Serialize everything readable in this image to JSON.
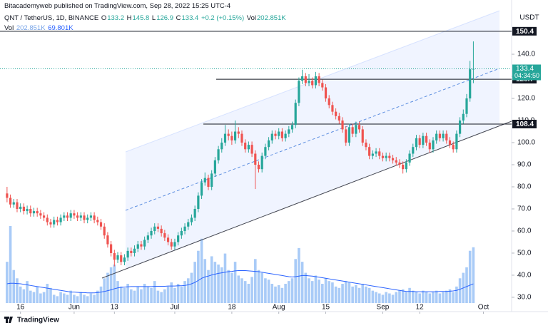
{
  "chart_data": {
    "type": "candlestick",
    "publisher": "Bitacademyweb published on TradingView.com, Sep 28, 2022 15:25 UTC-4",
    "title": "QNT / TetherUS, 1D, BINANCE",
    "ohlc_labels": [
      "O",
      "H",
      "L",
      "C"
    ],
    "change": "+0.2 (+0.15%)",
    "brand": "TradingView",
    "y_unit": "USDT",
    "countdown": "04:34:50",
    "up_color": "#26a69a",
    "down_color": "#ef5350",
    "grid": false,
    "open": [
      77,
      75,
      72,
      73,
      70,
      71,
      69,
      70,
      68,
      69,
      68,
      67,
      66,
      64,
      63,
      65,
      64,
      66,
      67,
      66,
      68,
      67,
      66,
      67,
      65,
      66,
      67,
      65,
      64,
      62,
      58,
      54,
      50,
      47,
      49,
      46,
      48,
      51,
      50,
      52,
      54,
      53,
      56,
      58,
      60,
      62,
      61,
      59,
      57,
      55,
      53,
      55,
      58,
      60,
      62,
      64,
      66,
      70,
      76,
      82,
      84,
      80,
      86,
      92,
      97,
      100,
      104,
      103,
      101,
      105,
      104,
      100,
      97,
      99,
      95,
      90,
      88,
      94,
      98,
      101,
      104,
      103,
      105,
      102,
      104,
      106,
      108,
      118,
      128,
      130,
      127,
      128,
      126,
      130,
      127,
      125,
      120,
      117,
      114,
      112,
      110,
      106,
      100,
      107,
      104,
      108,
      106,
      100,
      98,
      94,
      95,
      96,
      94,
      93,
      94,
      93,
      92,
      91,
      90,
      88,
      91,
      95,
      98,
      102,
      99,
      103,
      100,
      97,
      101,
      104,
      102,
      104,
      101,
      99,
      97,
      104,
      110,
      113,
      120,
      133.2
    ],
    "high": [
      80,
      76.5,
      74.5,
      74.5,
      72.5,
      72.5,
      71.5,
      71.5,
      70.5,
      70.5,
      69.5,
      68.5,
      67.5,
      65.5,
      66.5,
      66.5,
      67.5,
      68.5,
      68.5,
      69.5,
      69.5,
      68.5,
      68.5,
      68.5,
      67.5,
      68.5,
      68.5,
      66.5,
      65.5,
      63.5,
      59.5,
      55.5,
      51.5,
      50.5,
      50.5,
      49.5,
      52.5,
      52.5,
      53.5,
      55.5,
      55.5,
      57.5,
      59.5,
      61.5,
      63.5,
      63.5,
      62.5,
      60.5,
      58.5,
      56.5,
      56.5,
      59.5,
      61.5,
      63.5,
      65.5,
      67.5,
      71.5,
      77.5,
      83.5,
      86.5,
      85.5,
      87.5,
      93.5,
      98.5,
      102,
      108,
      106,
      105,
      110,
      107,
      105.5,
      101.5,
      100.5,
      100.5,
      96.5,
      91.5,
      95.5,
      99.5,
      102.5,
      105.5,
      105.5,
      106.5,
      106.5,
      105.5,
      107.5,
      109.5,
      119.5,
      129.5,
      133,
      131.5,
      131,
      129.5,
      132,
      131.5,
      128.5,
      126.5,
      121.5,
      118.5,
      115.5,
      113.5,
      111.5,
      107.5,
      108.5,
      108.5,
      109.5,
      109.5,
      107.5,
      101.5,
      99.5,
      96.5,
      97.5,
      97.5,
      95.5,
      95.5,
      95.5,
      94.5,
      93.5,
      92.5,
      91.5,
      92.5,
      96.5,
      99.5,
      103.5,
      103.5,
      104.5,
      104.5,
      101.5,
      102.5,
      105.5,
      105.5,
      105.5,
      105.5,
      102.5,
      100.5,
      105.5,
      111.5,
      115,
      122,
      137,
      145.8
    ],
    "low": [
      73,
      70.5,
      70.5,
      68.5,
      68.5,
      67.5,
      67.5,
      66.5,
      66.5,
      66.5,
      65.5,
      64.5,
      62.5,
      61.5,
      61.5,
      62.5,
      62.5,
      64.5,
      64.5,
      64.5,
      65.5,
      64.5,
      64.5,
      63.5,
      63.5,
      64.5,
      63.5,
      62.5,
      60.5,
      56.5,
      52.5,
      48.5,
      44,
      45.5,
      44.5,
      44.5,
      46.5,
      48.5,
      48.5,
      50.5,
      51.5,
      51.5,
      54.5,
      56.5,
      58.5,
      59.5,
      57.5,
      55.5,
      53.5,
      51.5,
      51.5,
      53.5,
      56.5,
      58.5,
      60.5,
      62.5,
      64.5,
      68.5,
      74.5,
      80.5,
      78.5,
      78.5,
      84.5,
      90.5,
      95.5,
      98.5,
      101,
      99,
      99.5,
      102,
      98.5,
      95.5,
      95.5,
      93.5,
      79,
      86.5,
      86.5,
      92.5,
      96.5,
      99.5,
      101.5,
      101.5,
      100.5,
      100.5,
      102.5,
      104.5,
      106.5,
      116.5,
      126.5,
      125.5,
      125.5,
      124.5,
      124.5,
      125.5,
      123.5,
      118.5,
      115.5,
      112.5,
      110.5,
      108.5,
      104.5,
      98.5,
      98.5,
      102.5,
      102.5,
      104.5,
      98.5,
      96.5,
      92.5,
      92.5,
      93.5,
      92.5,
      91.5,
      91.5,
      91.5,
      90.5,
      89.5,
      88.5,
      86,
      86.5,
      89.5,
      93.5,
      96.5,
      97.5,
      97.5,
      98.5,
      95.5,
      95.5,
      99.5,
      100.5,
      100.5,
      99.5,
      97.5,
      95.5,
      95.5,
      102.5,
      108.5,
      111.5,
      118.5,
      126.9
    ],
    "close": [
      75,
      72,
      73,
      70,
      71,
      69,
      70,
      68,
      69,
      68,
      67,
      66,
      64,
      63,
      65,
      64,
      66,
      67,
      66,
      68,
      67,
      66,
      67,
      65,
      66,
      67,
      65,
      64,
      62,
      58,
      54,
      50,
      47,
      49,
      46,
      48,
      51,
      50,
      52,
      54,
      53,
      56,
      58,
      60,
      62,
      61,
      59,
      57,
      55,
      53,
      55,
      58,
      60,
      62,
      64,
      66,
      70,
      76,
      82,
      84,
      80,
      86,
      92,
      97,
      100,
      104,
      103,
      101,
      105,
      104,
      100,
      97,
      99,
      95,
      90,
      88,
      94,
      98,
      101,
      104,
      103,
      105,
      102,
      104,
      106,
      108,
      118,
      128,
      130,
      127,
      128,
      126,
      130,
      127,
      125,
      120,
      117,
      114,
      112,
      110,
      106,
      100,
      107,
      104,
      108,
      106,
      100,
      98,
      94,
      95,
      96,
      94,
      93,
      94,
      93,
      92,
      91,
      90,
      88,
      91,
      95,
      98,
      102,
      99,
      103,
      100,
      97,
      101,
      104,
      102,
      104,
      101,
      99,
      97,
      104,
      110,
      113,
      120,
      133.2,
      133.4
    ],
    "volume": {
      "name": "Vol",
      "color": "#a9cbf7",
      "values": [
        150,
        280,
        120,
        90,
        60,
        50,
        80,
        45,
        40,
        60,
        35,
        40,
        70,
        55,
        30,
        25,
        40,
        35,
        30,
        45,
        30,
        25,
        40,
        30,
        25,
        35,
        30,
        45,
        60,
        90,
        110,
        130,
        140,
        80,
        60,
        55,
        70,
        50,
        45,
        60,
        50,
        70,
        60,
        55,
        80,
        45,
        40,
        50,
        60,
        75,
        55,
        70,
        60,
        80,
        90,
        110,
        150,
        190,
        234,
        160,
        120,
        170,
        150,
        140,
        130,
        180,
        120,
        110,
        150,
        100,
        90,
        80,
        70,
        95,
        160,
        120,
        110,
        90,
        85,
        70,
        60,
        65,
        55,
        70,
        80,
        90,
        160,
        200,
        150,
        110,
        90,
        80,
        100,
        85,
        70,
        90,
        80,
        75,
        60,
        55,
        70,
        80,
        75,
        60,
        65,
        55,
        70,
        60,
        55,
        45,
        40,
        35,
        30,
        40,
        35,
        30,
        40,
        45,
        50,
        40,
        55,
        45,
        40,
        35,
        45,
        40,
        35,
        40,
        45,
        35,
        40,
        45,
        50,
        40,
        60,
        90,
        110,
        130,
        190,
        202.851
      ],
      "label": "202.851K",
      "ma": {
        "color": "#2962ff",
        "values": [
          70,
          72,
          72,
          71,
          70,
          68,
          66,
          64,
          62,
          60,
          58,
          56,
          54,
          52,
          50,
          48,
          46,
          44,
          42,
          40,
          40,
          39,
          38,
          38,
          37,
          37,
          37,
          38,
          40,
          42,
          45,
          48,
          52,
          55,
          57,
          58,
          59,
          60,
          60,
          60,
          60,
          60,
          60,
          60,
          61,
          61,
          61,
          61,
          62,
          62,
          62,
          63,
          63,
          64,
          66,
          70,
          75,
          82,
          90,
          95,
          98,
          102,
          105,
          108,
          110,
          112,
          114,
          115,
          117,
          118,
          118,
          118,
          117,
          116,
          115,
          114,
          112,
          110,
          108,
          106,
          104,
          102,
          100,
          98,
          96,
          95,
          96,
          98,
          100,
          100,
          99,
          98,
          96,
          94,
          92,
          90,
          88,
          86,
          84,
          82,
          80,
          78,
          76,
          74,
          72,
          70,
          68,
          66,
          64,
          62,
          60,
          58,
          56,
          54,
          52,
          50,
          48,
          46,
          44,
          42,
          42,
          42,
          41,
          41,
          41,
          41,
          41,
          41,
          41,
          42,
          42,
          42,
          43,
          44,
          46,
          50,
          55,
          60,
          65,
          69.801
        ],
        "label": "69.801K"
      }
    },
    "levels": [
      150.4,
      128.7,
      108.4
    ],
    "ylim": [
      27.4,
      159.7
    ],
    "yticks": [
      {
        "value": 30,
        "label": "30.0"
      },
      {
        "value": 40,
        "label": "40.0"
      },
      {
        "value": 50,
        "label": "50.0"
      },
      {
        "value": 60,
        "label": "60.0"
      },
      {
        "value": 70,
        "label": "70.0"
      },
      {
        "value": 80,
        "label": "80.0"
      },
      {
        "value": 90,
        "label": "90.0"
      },
      {
        "value": 100,
        "label": "100.0"
      },
      {
        "value": 110,
        "label": "110.0"
      },
      {
        "value": 120,
        "label": "120.0"
      },
      {
        "value": 130,
        "label": "130.0"
      },
      {
        "value": 140,
        "label": "140.0"
      }
    ],
    "xlim": [
      -2.1,
      150.4
    ],
    "xticks": [
      {
        "value": 4,
        "label": "16"
      },
      {
        "value": 20,
        "label": "Jun"
      },
      {
        "value": 32,
        "label": "13"
      },
      {
        "value": 50,
        "label": "Jul"
      },
      {
        "value": 67,
        "label": "18"
      },
      {
        "value": 81,
        "label": "Aug"
      },
      {
        "value": 95,
        "label": "15"
      },
      {
        "value": 112,
        "label": "Sep"
      },
      {
        "value": 123,
        "label": "12"
      },
      {
        "value": 142,
        "label": "Oct"
      }
    ]
  }
}
